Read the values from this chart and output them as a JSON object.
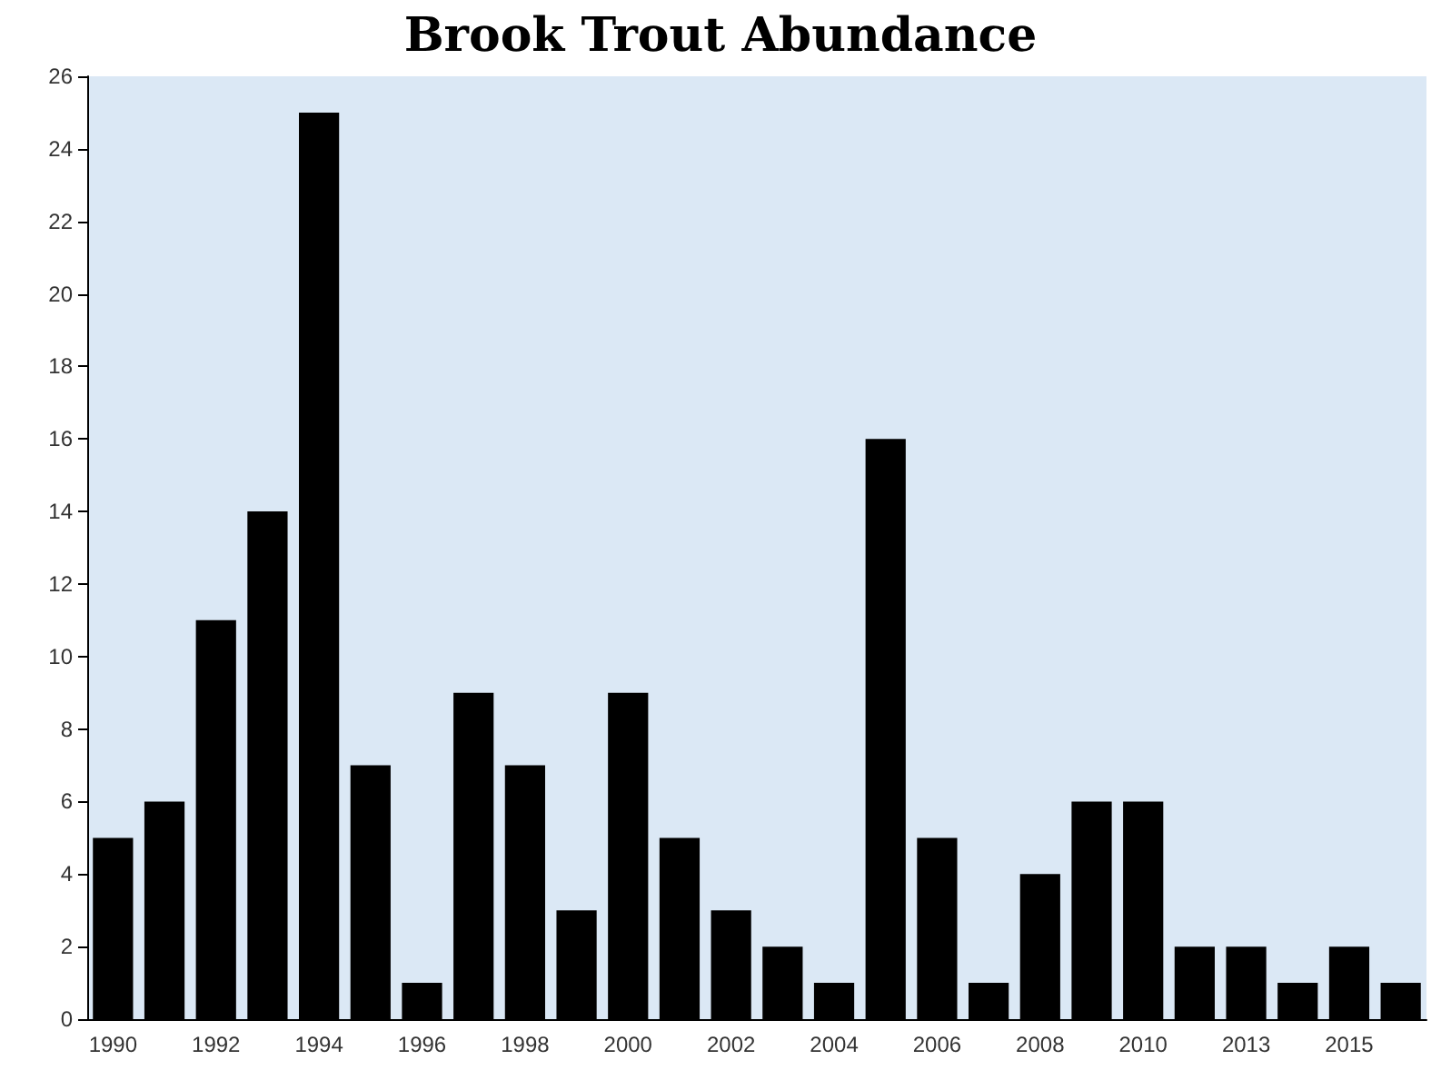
{
  "chart_data": {
    "type": "bar",
    "title": "Brook Trout Abundance",
    "categories": [
      "1990",
      null,
      "1992",
      null,
      "1994",
      null,
      "1996",
      null,
      "1998",
      null,
      "2000",
      null,
      "2002",
      null,
      "2004",
      null,
      "2006",
      null,
      "2008",
      null,
      "2010",
      null,
      "2013",
      null,
      "2015",
      null
    ],
    "values": [
      5,
      6,
      11,
      14,
      25,
      7,
      1,
      9,
      7,
      3,
      9,
      5,
      3,
      2,
      1,
      16,
      5,
      1,
      4,
      6,
      6,
      2,
      2,
      1,
      2,
      1
    ],
    "color": "#000000",
    "ylim": [
      0,
      26
    ],
    "yticks": [
      0,
      2,
      4,
      6,
      8,
      10,
      12,
      14,
      16,
      18,
      20,
      22,
      24,
      26
    ],
    "grid": false
  }
}
